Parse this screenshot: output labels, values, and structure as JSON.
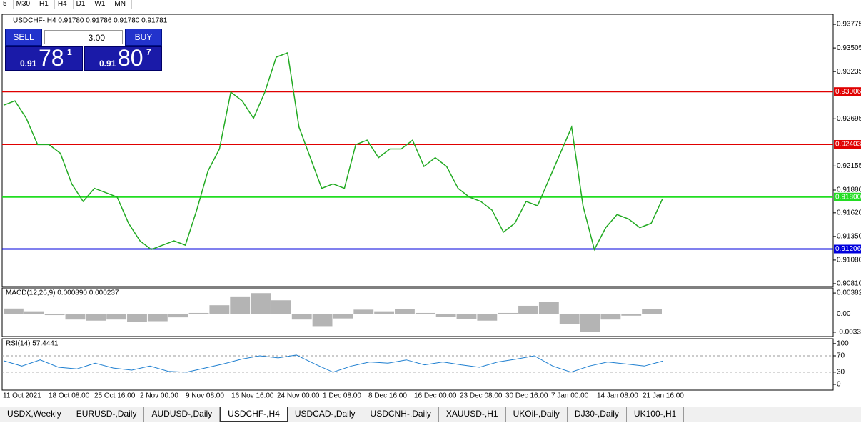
{
  "toolbar": [
    "5",
    "M30",
    "H1",
    "H4",
    "D1",
    "W1",
    "MN"
  ],
  "trade_panel": {
    "sell": "SELL",
    "buy": "BUY",
    "lot": "3.00",
    "bid": {
      "big": "0.91",
      "main": "78",
      "sup": "1"
    },
    "ask": {
      "big": "0.91",
      "main": "80",
      "sup": "7"
    }
  },
  "tabs": [
    "USDX,Weekly",
    "EURUSD-,Daily",
    "AUDUSD-,Daily",
    "USDCHF-,H4",
    "USDCAD-,Daily",
    "USDCNH-,Daily",
    "XAUUSD-,H1",
    "UKOil-,Daily",
    "DJ30-,Daily",
    "UK100-,H1"
  ],
  "active_tab": "USDCHF-,H4",
  "chart_data": {
    "type": "line",
    "title": "USDCHF-,H4  0.91780 0.91786 0.91780 0.91781",
    "price": {
      "color": "#22aa22",
      "values": [
        0.9285,
        0.929,
        0.927,
        0.924,
        0.924,
        0.923,
        0.9195,
        0.9175,
        0.919,
        0.9185,
        0.918,
        0.915,
        0.913,
        0.912,
        0.9125,
        0.913,
        0.9125,
        0.9165,
        0.921,
        0.9235,
        0.93,
        0.929,
        0.927,
        0.93,
        0.934,
        0.9345,
        0.926,
        0.9225,
        0.919,
        0.9195,
        0.919,
        0.924,
        0.9245,
        0.9225,
        0.9235,
        0.9235,
        0.9245,
        0.9215,
        0.9225,
        0.9215,
        0.919,
        0.918,
        0.9175,
        0.9165,
        0.914,
        0.915,
        0.9175,
        0.917,
        0.92,
        0.923,
        0.926,
        0.917,
        0.912,
        0.9145,
        0.916,
        0.9155,
        0.9145,
        0.915,
        0.9178
      ]
    },
    "ylim": [
      0.90777,
      0.9389
    ],
    "yticks": [
      0.93775,
      0.93505,
      0.93235,
      0.92695,
      0.92155,
      {
        "value": 0.9188,
        "label": "0.91880"
      },
      {
        "value": 0.9162,
        "label": "0.91620"
      },
      {
        "value": 0.9135,
        "label": "0.91350"
      },
      {
        "value": 0.9108,
        "label": "0.91080"
      },
      {
        "value": 0.9081,
        "label": "0.90810"
      }
    ],
    "levels": [
      {
        "value": 0.93006,
        "label": "0.93006",
        "color": "#e00000"
      },
      {
        "value": 0.92403,
        "label": "0.92403",
        "color": "#e00000"
      },
      {
        "value": 0.918,
        "label": "0.91800",
        "color": "#22dd22"
      },
      {
        "value": 0.91206,
        "label": "0.91206",
        "color": "#0000dd"
      }
    ],
    "xlabels": [
      "11 Oct 2021",
      "18 Oct 08:00",
      "25 Oct 16:00",
      "2 Nov 00:00",
      "9 Nov 08:00",
      "16 Nov 16:00",
      "24 Nov 00:00",
      "1 Dec 08:00",
      "8 Dec 16:00",
      "16 Dec 00:00",
      "23 Dec 08:00",
      "30 Dec 16:00",
      "7 Jan 00:00",
      "14 Jan 08:00",
      "21 Jan 16:00"
    ],
    "macd": {
      "title": "MACD(12,26,9) 0.000890 0.000237",
      "color": "#b4b4b4",
      "values": [
        0.001,
        0.0005,
        -0.0002,
        -0.001,
        -0.0012,
        -0.001,
        -0.0014,
        -0.0013,
        -0.0006,
        0.0002,
        0.0016,
        0.0032,
        0.0038,
        0.0025,
        -0.001,
        -0.0022,
        -0.0008,
        0.0008,
        0.0005,
        0.0009,
        0.0002,
        -0.0005,
        -0.0009,
        -0.0012,
        0.0002,
        0.0015,
        0.0022,
        -0.0018,
        -0.0032,
        -0.001,
        -0.0003,
        0.0009
      ],
      "ylim": [
        -0.00409,
        0.00474
      ],
      "yticks": [
        0.00382,
        {
          "value": 0,
          "label": "0.00"
        },
        -0.0033
      ]
    },
    "rsi": {
      "title": "RSI(14) 57.4441",
      "color": "#1e7fd0",
      "values": [
        58,
        45,
        60,
        42,
        38,
        52,
        40,
        35,
        45,
        32,
        30,
        40,
        50,
        62,
        70,
        65,
        72,
        50,
        30,
        45,
        55,
        52,
        60,
        48,
        55,
        48,
        42,
        55,
        62,
        70,
        45,
        30,
        45,
        55,
        50,
        45,
        57
      ],
      "ylim": [
        -14,
        112
      ],
      "yticks": [
        100,
        70,
        30,
        0
      ]
    }
  }
}
